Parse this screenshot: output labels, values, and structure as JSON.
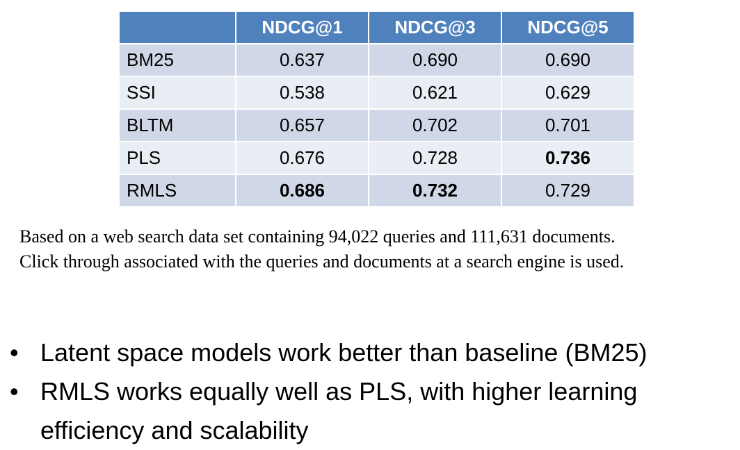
{
  "table": {
    "headers": [
      "",
      "NDCG@1",
      "NDCG@3",
      "NDCG@5"
    ],
    "rows": [
      {
        "model": "BM25",
        "values": [
          "0.637",
          "0.690",
          "0.690"
        ]
      },
      {
        "model": "SSI",
        "values": [
          "0.538",
          "0.621",
          "0.629"
        ]
      },
      {
        "model": "BLTM",
        "values": [
          "0.657",
          "0.702",
          "0.701"
        ]
      },
      {
        "model": "PLS",
        "values": [
          "0.676",
          "0.728",
          "0.736"
        ]
      },
      {
        "model": "RMLS",
        "values": [
          "0.686",
          "0.732",
          "0.729"
        ]
      }
    ],
    "bold_cells": {
      "PLS": [
        "0.736"
      ],
      "RMLS": [
        "0.686",
        "0.732"
      ]
    },
    "colors": {
      "header": "#4f81bd",
      "row_odd": "#d0d8e8",
      "row_even": "#e9edf4"
    }
  },
  "caption": {
    "line1": "Based on a web search data set containing 94,022 queries and 111,631 documents.",
    "line2": "Click through associated with the queries and documents at a search engine is used."
  },
  "bullets": {
    "marker": "•",
    "items": [
      "Latent space models work better than baseline (BM25)",
      "RMLS works equally well as PLS, with higher learning efficiency and scalability"
    ]
  }
}
